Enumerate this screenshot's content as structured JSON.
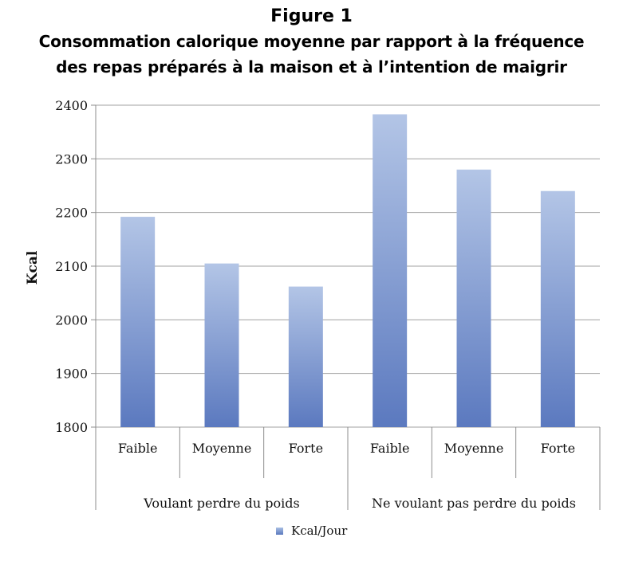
{
  "title": "Figure 1",
  "subtitle_lines": [
    "Consommation calorique moyenne par rapport à la fréquence",
    "des repas préparés à la maison et à l’intention de maigrir"
  ],
  "colors": {
    "bar_top": "#b3c5e6",
    "bar_bottom": "#5b79bf",
    "grid": "#a0a0a0",
    "axis": "#8c8c8c"
  },
  "chart_data": {
    "type": "bar",
    "title": "Figure 1",
    "ylabel": "Kcal",
    "xlabel": "",
    "ylim": [
      1800,
      2400
    ],
    "yticks": [
      1800,
      1900,
      2000,
      2100,
      2200,
      2300,
      2400
    ],
    "grid": true,
    "legend_position": "bottom",
    "categories": [
      "Faible",
      "Moyenne",
      "Forte",
      "Faible",
      "Moyenne",
      "Forte"
    ],
    "groups": [
      {
        "label": "Voulant perdre du poids",
        "categories": [
          "Faible",
          "Moyenne",
          "Forte"
        ]
      },
      {
        "label": "Ne voulant pas perdre du poids",
        "categories": [
          "Faible",
          "Moyenne",
          "Forte"
        ]
      }
    ],
    "series": [
      {
        "name": "Kcal/Jour",
        "values": [
          2192,
          2105,
          2062,
          2383,
          2280,
          2240
        ]
      }
    ]
  }
}
